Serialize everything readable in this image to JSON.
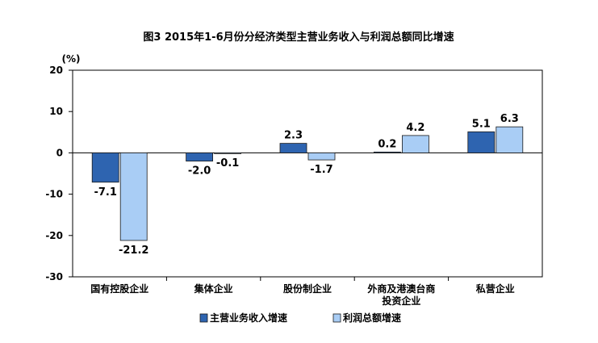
{
  "chart_data": {
    "type": "bar",
    "title": "图3 2015年1-6月份分经济类型主营业务收入与利润总额同比增速",
    "ylabel": "(%)",
    "ylim": [
      -30,
      20
    ],
    "yticks": [
      20,
      10,
      0,
      -10,
      -20,
      -30
    ],
    "grid": false,
    "legend_position": "bottom",
    "categories": [
      [
        "国有控股企业"
      ],
      [
        "集体企业"
      ],
      [
        "股份制企业"
      ],
      [
        "外商及港澳台商",
        "投资企业"
      ],
      [
        "私营企业"
      ]
    ],
    "series": [
      {
        "name": "主营业务收入增速",
        "color": "#2e64b0",
        "values": [
          -7.1,
          -2.0,
          2.3,
          0.2,
          5.1
        ],
        "labels": [
          "-7.1",
          "-2.0",
          "2.3",
          "0.2",
          "5.1"
        ]
      },
      {
        "name": "利润总额增速",
        "color": "#a9cdf5",
        "values": [
          -21.2,
          -0.1,
          -1.7,
          4.2,
          6.3
        ],
        "labels": [
          "-21.2",
          "-0.1",
          "-1.7",
          "4.2",
          "6.3"
        ]
      }
    ]
  }
}
